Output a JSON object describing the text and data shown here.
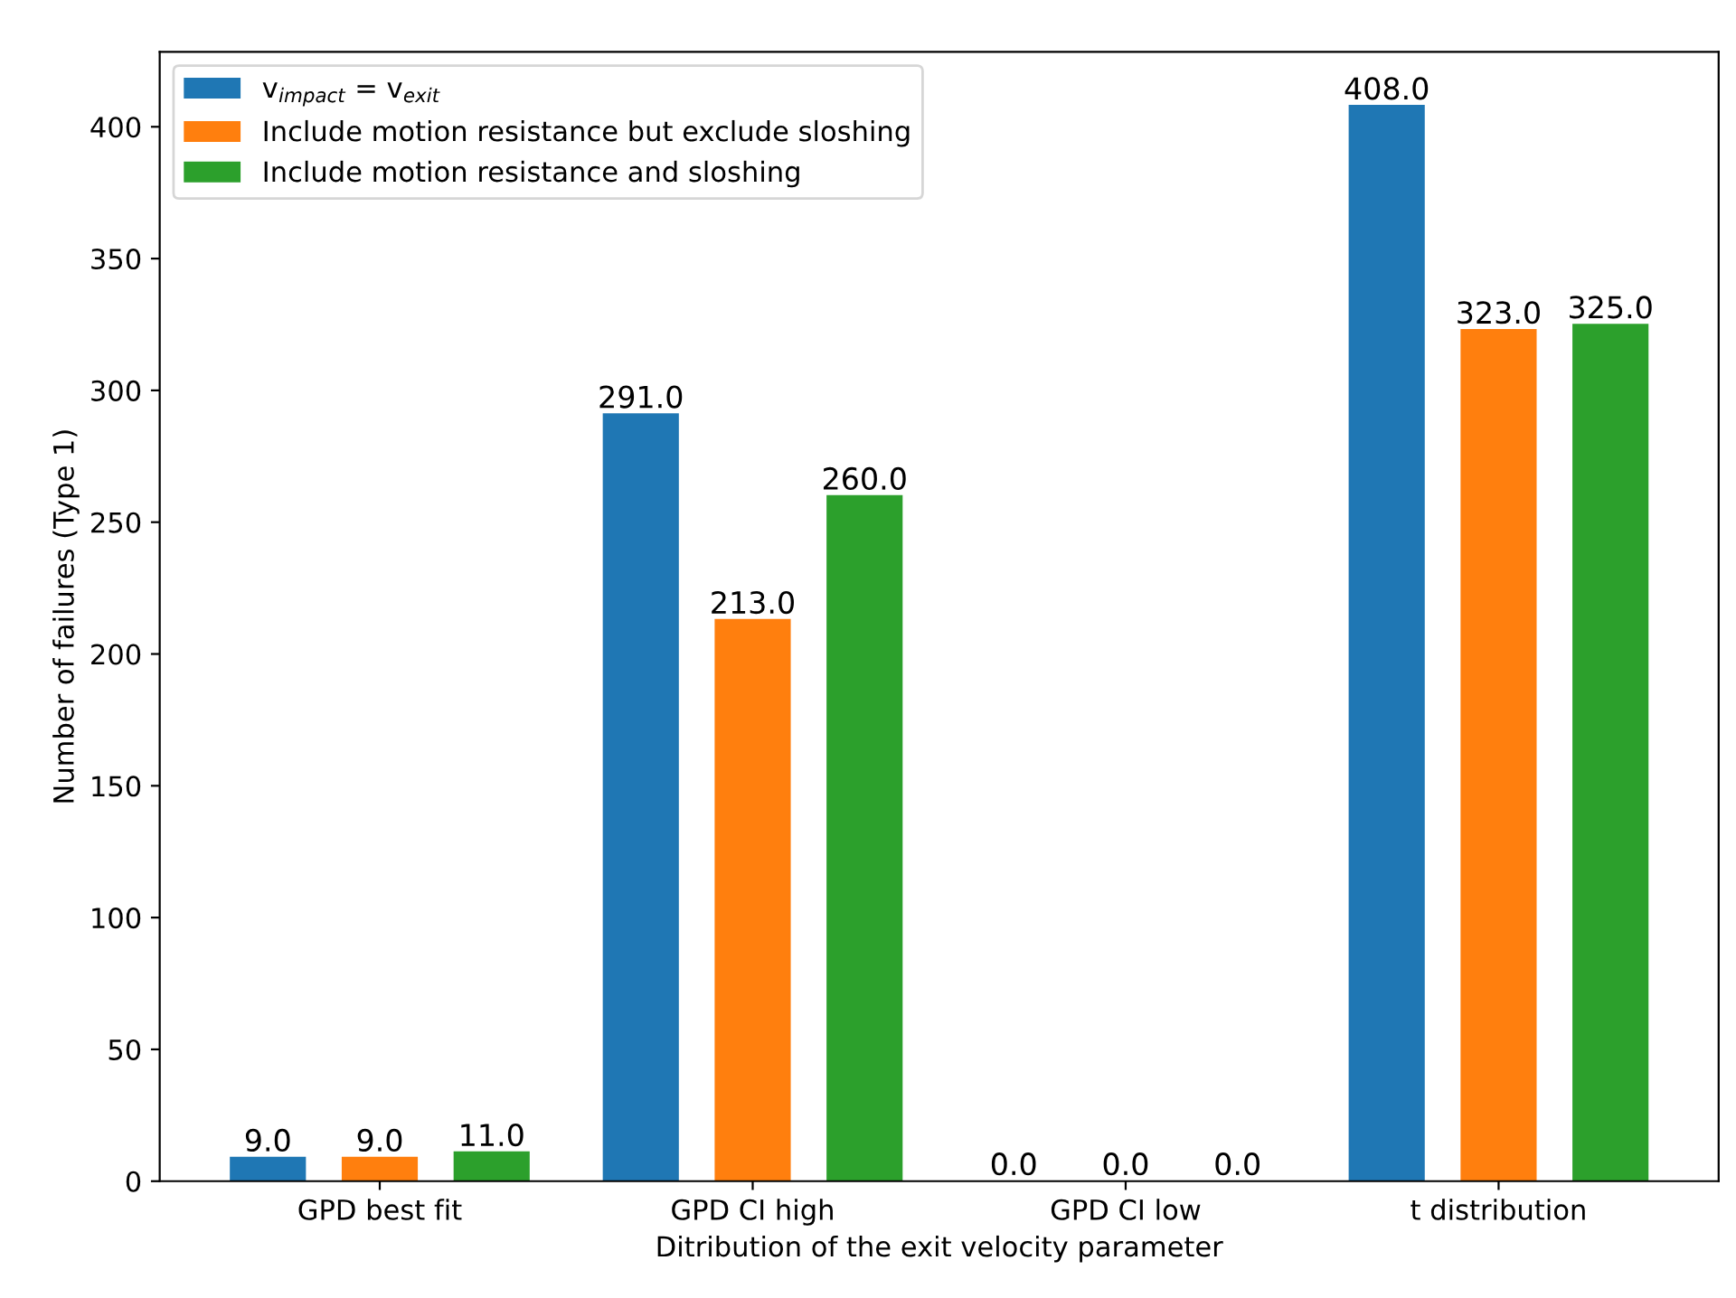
{
  "chart_data": {
    "type": "bar",
    "xlabel": "Ditribution of the exit velocity parameter",
    "ylabel": "Number of failures (Type 1)",
    "categories": [
      "GPD best fit",
      "GPD CI high",
      "GPD CI low",
      "t distribution"
    ],
    "series": [
      {
        "name": "v$_{impact}$ = v$_{exit}$",
        "color": "#1f77b4",
        "values": [
          9.0,
          291.0,
          0.0,
          408.0
        ],
        "value_labels": [
          "9.0",
          "291.0",
          "0.0",
          "408.0"
        ]
      },
      {
        "name": "Include motion resistance but exclude sloshing",
        "color": "#ff7f0e",
        "values": [
          9.0,
          213.0,
          0.0,
          323.0
        ],
        "value_labels": [
          "9.0",
          "213.0",
          "0.0",
          "323.0"
        ]
      },
      {
        "name": "Include motion resistance and sloshing",
        "color": "#2ca02c",
        "values": [
          11.0,
          260.0,
          0.0,
          325.0
        ],
        "value_labels": [
          "11.0",
          "260.0",
          "0.0",
          "325.0"
        ]
      }
    ],
    "ylim": [
      0,
      428.4
    ],
    "yticks": [
      0,
      50,
      100,
      150,
      200,
      250,
      300,
      350,
      400
    ],
    "legend": "top left",
    "grid": false
  }
}
